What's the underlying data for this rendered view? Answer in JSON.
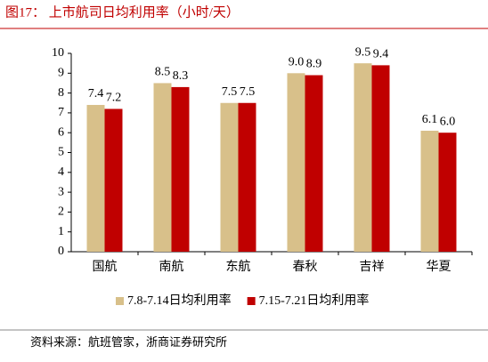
{
  "chart_data": {
    "type": "bar",
    "title": "图17：  上市航司日均利用率（小时/天）",
    "source": "资料来源：航班管家，浙商证券研究所",
    "categories": [
      "国航",
      "南航",
      "东航",
      "春秋",
      "吉祥",
      "华夏"
    ],
    "series": [
      {
        "name": "7.8-7.14日均利用率",
        "color": "#d8c08a",
        "values": [
          7.4,
          8.5,
          7.5,
          9.0,
          9.5,
          6.1
        ],
        "value_labels": [
          "7.4",
          "8.5",
          "7.5",
          "9.0",
          "9.5",
          "6.1"
        ]
      },
      {
        "name": "7.15-7.21日均利用率",
        "color": "#c00000",
        "values": [
          7.2,
          8.3,
          7.5,
          8.9,
          9.4,
          6.0
        ],
        "value_labels": [
          "7.2",
          "8.3",
          "7.5",
          "8.9",
          "9.4",
          "6.0"
        ]
      }
    ],
    "ylim": [
      0,
      10
    ],
    "yticks": [
      0,
      1,
      2,
      3,
      4,
      5,
      6,
      7,
      8,
      9,
      10
    ],
    "grid": false,
    "legend": "bottom"
  }
}
